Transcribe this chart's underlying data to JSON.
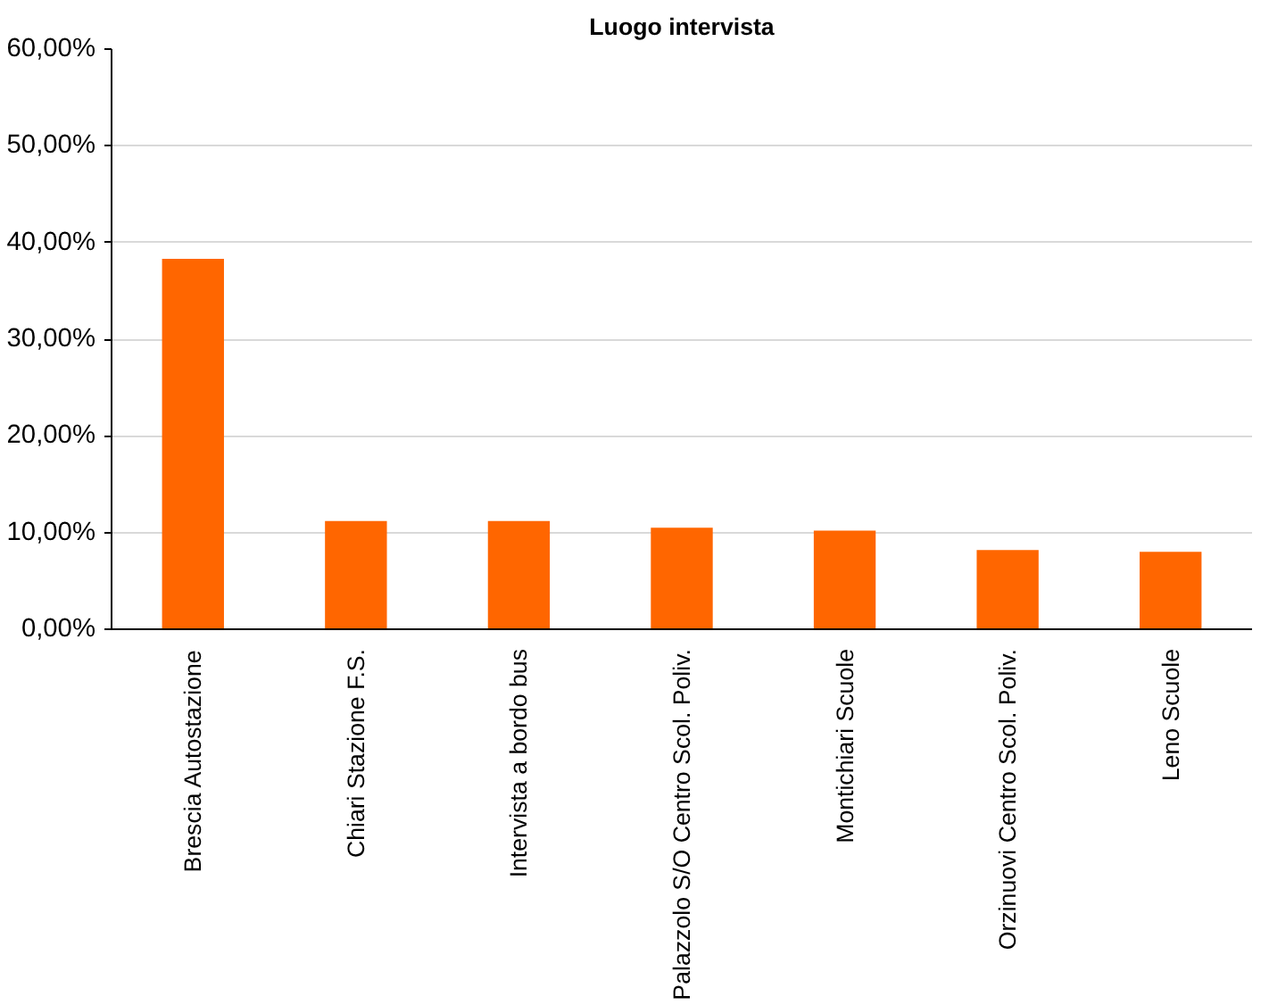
{
  "chart_data": {
    "type": "bar",
    "title": "Luogo intervista",
    "categories": [
      "Brescia Autostazione",
      "Chiari Stazione F.S.",
      "Intervista a bordo bus",
      "Palazzolo S/O Centro Scol. Poliv.",
      "Montichiari Scuole",
      "Orzinuovi Centro Scol. Poliv.",
      "Leno Scuole"
    ],
    "values": [
      38.3,
      11.2,
      11.2,
      10.5,
      10.2,
      8.2,
      8.0
    ],
    "color": "#ff6600",
    "ylim": [
      0,
      60
    ],
    "yticks": [
      {
        "value": 0,
        "label": "0,00%"
      },
      {
        "value": 10,
        "label": "10,00%"
      },
      {
        "value": 20,
        "label": "20,00%"
      },
      {
        "value": 30,
        "label": "30,00%"
      },
      {
        "value": 40,
        "label": "40,00%"
      },
      {
        "value": 50,
        "label": "50,00%"
      },
      {
        "value": 60,
        "label": "60,00%"
      }
    ],
    "grid": "y"
  }
}
